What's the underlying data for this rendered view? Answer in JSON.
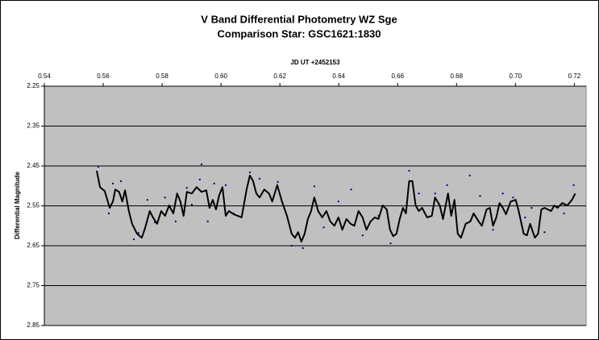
{
  "chart_data": {
    "type": "scatter",
    "title": "V Band Differential Photometry WZ Sge",
    "subtitle": "Comparison Star: GSC1621:1830",
    "x_label": "JD UT +2452153",
    "y_label": "Differential Magnitude",
    "xlim": [
      0.54,
      0.724
    ],
    "xticks": [
      0.54,
      0.56,
      0.58,
      {
        "value": 0.6,
        "label": "0.60"
      },
      0.62,
      0.64,
      0.66,
      0.68,
      {
        "value": 0.7,
        "label": "0.70"
      },
      0.72
    ],
    "x_axis_position": "top",
    "ylim": [
      2.25,
      2.85
    ],
    "yticks": [
      2.25,
      2.35,
      2.45,
      2.55,
      2.65,
      2.75,
      2.85
    ],
    "y_reversed": true,
    "grid": true,
    "plot_background": "#c0c0c0",
    "series": [
      {
        "style": "line",
        "color": "#000000",
        "x": [
          0.5578,
          0.5589,
          0.5605,
          0.5622,
          0.5633,
          0.5641,
          0.5654,
          0.5665,
          0.5674,
          0.5687,
          0.5698,
          0.5715,
          0.5731,
          0.5742,
          0.5758,
          0.5769,
          0.5783,
          0.5797,
          0.581,
          0.5824,
          0.5838,
          0.5851,
          0.5862,
          0.5873,
          0.5884,
          0.5901,
          0.5917,
          0.5934,
          0.595,
          0.5961,
          0.5972,
          0.5983,
          0.5994,
          0.6005,
          0.6016,
          0.6027,
          0.6043,
          0.6057,
          0.607,
          0.6087,
          0.6098,
          0.6109,
          0.612,
          0.6131,
          0.6147,
          0.6163,
          0.6174,
          0.6191,
          0.6207,
          0.6224,
          0.624,
          0.6251,
          0.6262,
          0.6273,
          0.6284,
          0.6295,
          0.6306,
          0.6317,
          0.633,
          0.6344,
          0.6358,
          0.6371,
          0.6385,
          0.6399,
          0.6412,
          0.6426,
          0.644,
          0.6453,
          0.6467,
          0.6481,
          0.6494,
          0.6508,
          0.6522,
          0.6535,
          0.6549,
          0.6563,
          0.6574,
          0.6585,
          0.6596,
          0.6607,
          0.6618,
          0.6628,
          0.6639,
          0.665,
          0.6661,
          0.6672,
          0.6683,
          0.67,
          0.6716,
          0.6727,
          0.6743,
          0.6754,
          0.6771,
          0.6782,
          0.6793,
          0.6804,
          0.6815,
          0.6831,
          0.6847,
          0.6858,
          0.6875,
          0.6886,
          0.6902,
          0.6913,
          0.6924,
          0.6935,
          0.6946,
          0.6957,
          0.6968,
          0.6984,
          0.7001,
          0.7011,
          0.7028,
          0.7039,
          0.705,
          0.7066,
          0.7077,
          0.7088,
          0.7099,
          0.711,
          0.7121,
          0.7132,
          0.7143,
          0.7159,
          0.7176,
          0.7192,
          0.7203
        ],
        "values": [
          2.462,
          2.503,
          2.513,
          2.555,
          2.539,
          2.509,
          2.515,
          2.539,
          2.511,
          2.563,
          2.595,
          2.62,
          2.63,
          2.606,
          2.563,
          2.579,
          2.595,
          2.563,
          2.575,
          2.549,
          2.569,
          2.519,
          2.539,
          2.575,
          2.515,
          2.519,
          2.503,
          2.515,
          2.511,
          2.555,
          2.535,
          2.559,
          2.523,
          2.503,
          2.575,
          2.563,
          2.571,
          2.575,
          2.579,
          2.509,
          2.474,
          2.488,
          2.519,
          2.529,
          2.509,
          2.519,
          2.539,
          2.498,
          2.539,
          2.575,
          2.62,
          2.63,
          2.616,
          2.64,
          2.62,
          2.583,
          2.563,
          2.529,
          2.563,
          2.579,
          2.563,
          2.589,
          2.6,
          2.579,
          2.61,
          2.583,
          2.595,
          2.6,
          2.563,
          2.579,
          2.61,
          2.589,
          2.579,
          2.583,
          2.549,
          2.559,
          2.61,
          2.626,
          2.62,
          2.583,
          2.555,
          2.569,
          2.488,
          2.488,
          2.549,
          2.563,
          2.555,
          2.579,
          2.575,
          2.529,
          2.549,
          2.583,
          2.519,
          2.575,
          2.535,
          2.62,
          2.63,
          2.595,
          2.589,
          2.569,
          2.589,
          2.6,
          2.559,
          2.555,
          2.6,
          2.579,
          2.543,
          2.555,
          2.571,
          2.539,
          2.535,
          2.563,
          2.62,
          2.624,
          2.595,
          2.63,
          2.62,
          2.559,
          2.555,
          2.559,
          2.563,
          2.549,
          2.555,
          2.543,
          2.549,
          2.535,
          2.519
        ]
      },
      {
        "style": "markers",
        "color": "#00007f",
        "x": [
          0.5583,
          0.5619,
          0.5633,
          0.566,
          0.5704,
          0.572,
          0.575,
          0.5775,
          0.581,
          0.5846,
          0.5884,
          0.5901,
          0.5928,
          0.5934,
          0.5955,
          0.5977,
          0.6016,
          0.6043,
          0.6098,
          0.6131,
          0.6193,
          0.624,
          0.6278,
          0.6317,
          0.6349,
          0.6399,
          0.6442,
          0.6481,
          0.6535,
          0.6576,
          0.6639,
          0.6672,
          0.6727,
          0.6768,
          0.6845,
          0.688,
          0.6924,
          0.6957,
          0.6992,
          0.7033,
          0.7055,
          0.7099,
          0.7165,
          0.7198
        ],
        "values": [
          2.452,
          2.569,
          2.494,
          2.488,
          2.634,
          2.618,
          2.535,
          2.591,
          2.529,
          2.589,
          2.505,
          2.547,
          2.484,
          2.446,
          2.589,
          2.494,
          2.498,
          2.569,
          2.466,
          2.482,
          2.49,
          2.65,
          2.656,
          2.501,
          2.604,
          2.539,
          2.509,
          2.624,
          2.575,
          2.644,
          2.462,
          2.519,
          2.519,
          2.498,
          2.474,
          2.525,
          2.61,
          2.519,
          2.529,
          2.579,
          2.555,
          2.616,
          2.569,
          2.498
        ]
      }
    ]
  }
}
